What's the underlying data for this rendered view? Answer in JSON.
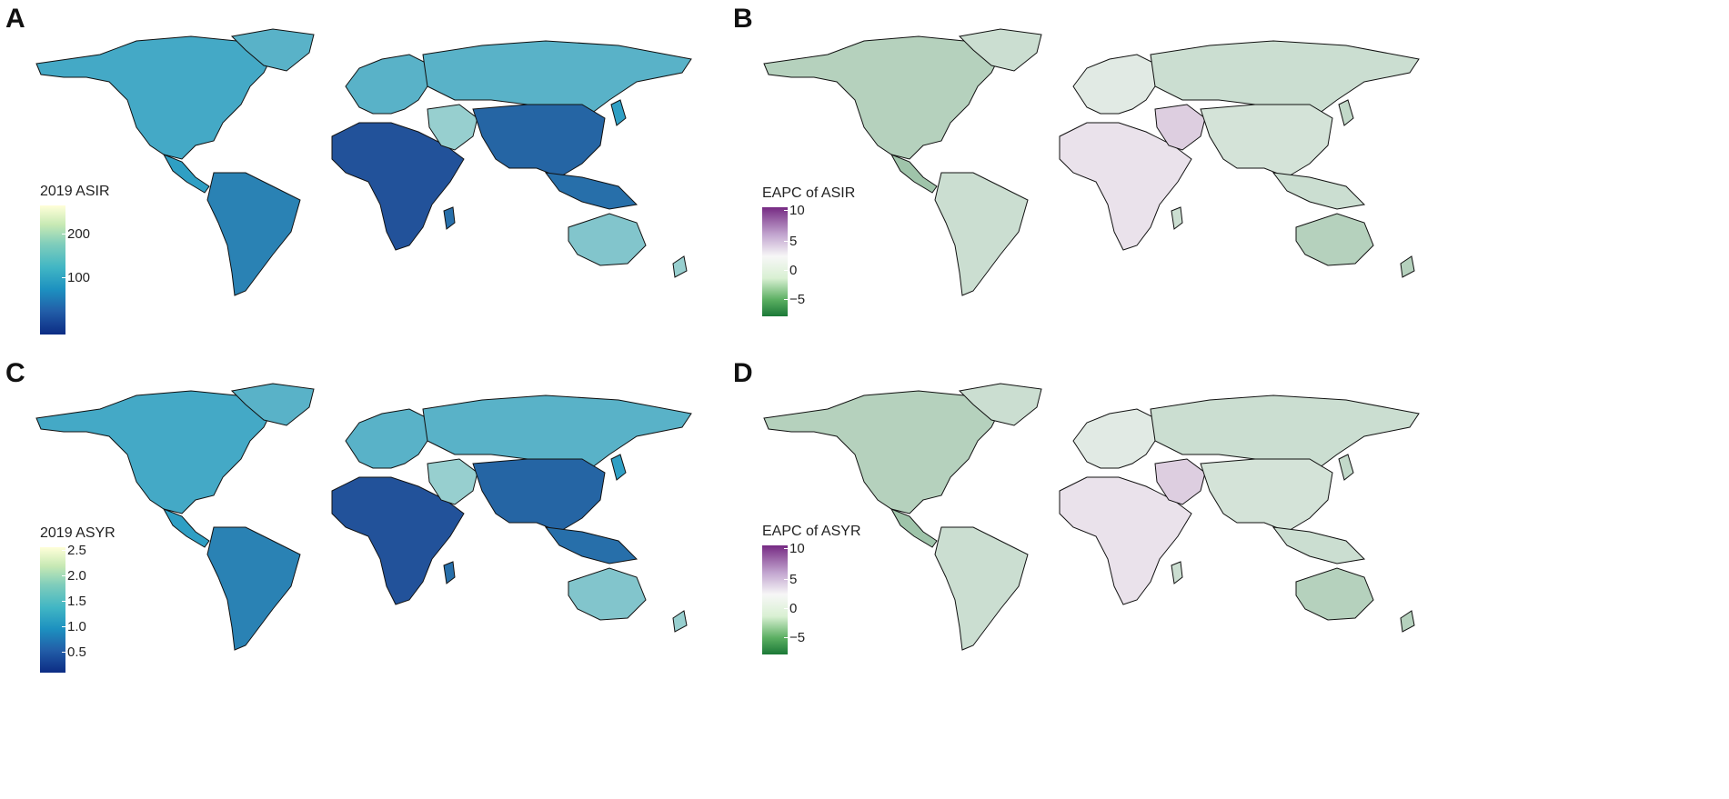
{
  "panels": [
    {
      "letter": "A",
      "legend_title": "2019 ASIR",
      "ticks": [
        "200",
        "100"
      ],
      "scheme": "ylgnbu"
    },
    {
      "letter": "B",
      "legend_title": "EAPC of ASIR",
      "ticks": [
        "10",
        "5",
        "0",
        "−5"
      ],
      "scheme": "prgn"
    },
    {
      "letter": "C",
      "legend_title": "2019 ASYR",
      "ticks": [
        "2.5",
        "2.0",
        "1.5",
        "1.0",
        "0.5"
      ],
      "scheme": "ylgnbu"
    },
    {
      "letter": "D",
      "legend_title": "EAPC of ASYR",
      "ticks": [
        "10",
        "5",
        "0",
        "−5"
      ],
      "scheme": "prgn"
    }
  ],
  "colors": {
    "ylgnbu_low": "#1f3f8f",
    "ylgnbu_mid": "#2f9fc4",
    "ylgnbu_high": "#ffffd9",
    "prgn_low": "#1b7837",
    "prgn_mid": "#f7f7f7",
    "prgn_high": "#762a83",
    "ocean": "#ffffff",
    "border": "#111111"
  }
}
